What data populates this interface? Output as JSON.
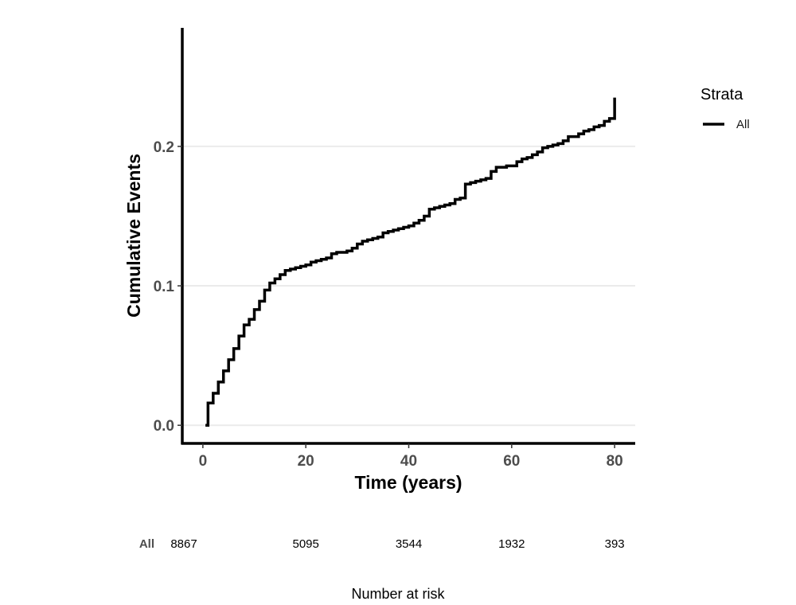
{
  "chart_data": {
    "type": "line",
    "title": "",
    "xlabel": "Time (years)",
    "ylabel": "Cumulative Events",
    "xlim": [
      -4,
      84
    ],
    "ylim": [
      -0.013,
      0.285
    ],
    "x_ticks": [
      0,
      20,
      40,
      60,
      80
    ],
    "x_tick_labels": [
      "0",
      "20",
      "40",
      "60",
      "80"
    ],
    "y_ticks": [
      0.0,
      0.1,
      0.2
    ],
    "y_tick_labels": [
      "0.0",
      "0.1",
      "0.2"
    ],
    "grid": "horizontal major",
    "legend": {
      "title": "Strata",
      "placement": "right",
      "entries": [
        "All"
      ]
    },
    "series": [
      {
        "name": "All",
        "color": "#000000",
        "step": true,
        "x": [
          0.5,
          1,
          2,
          3,
          4,
          5,
          6,
          7,
          8,
          9,
          10,
          11,
          12,
          13,
          14,
          15,
          16,
          17,
          18,
          19,
          20,
          21,
          22,
          23,
          24,
          25,
          26,
          27,
          28,
          29,
          30,
          31,
          32,
          33,
          34,
          35,
          36,
          37,
          38,
          39,
          40,
          41,
          42,
          43,
          44,
          45,
          46,
          47,
          48,
          49,
          50,
          51,
          52,
          53,
          54,
          55,
          56,
          57,
          58,
          59,
          60,
          61,
          62,
          63,
          64,
          65,
          66,
          67,
          68,
          69,
          70,
          71,
          72,
          73,
          74,
          75,
          76,
          77,
          78,
          79,
          80
        ],
        "y": [
          0.0,
          0.016,
          0.023,
          0.031,
          0.039,
          0.047,
          0.055,
          0.064,
          0.072,
          0.076,
          0.083,
          0.089,
          0.097,
          0.102,
          0.105,
          0.108,
          0.111,
          0.112,
          0.113,
          0.114,
          0.115,
          0.117,
          0.118,
          0.119,
          0.12,
          0.123,
          0.124,
          0.124,
          0.125,
          0.127,
          0.13,
          0.132,
          0.133,
          0.134,
          0.135,
          0.138,
          0.139,
          0.14,
          0.141,
          0.142,
          0.143,
          0.145,
          0.147,
          0.15,
          0.155,
          0.156,
          0.157,
          0.158,
          0.159,
          0.162,
          0.163,
          0.173,
          0.174,
          0.175,
          0.176,
          0.177,
          0.182,
          0.185,
          0.185,
          0.186,
          0.186,
          0.189,
          0.191,
          0.192,
          0.194,
          0.196,
          0.199,
          0.2,
          0.201,
          0.202,
          0.204,
          0.207,
          0.207,
          0.209,
          0.211,
          0.212,
          0.214,
          0.215,
          0.218,
          0.22,
          0.223
        ],
        "final_jump_to": 0.235
      }
    ],
    "risk_table": {
      "title": "Number at risk",
      "strata_label": "All",
      "x": [
        0,
        20,
        40,
        60,
        80
      ],
      "values": [
        "8867",
        "5095",
        "3544",
        "1932",
        "393"
      ]
    }
  }
}
